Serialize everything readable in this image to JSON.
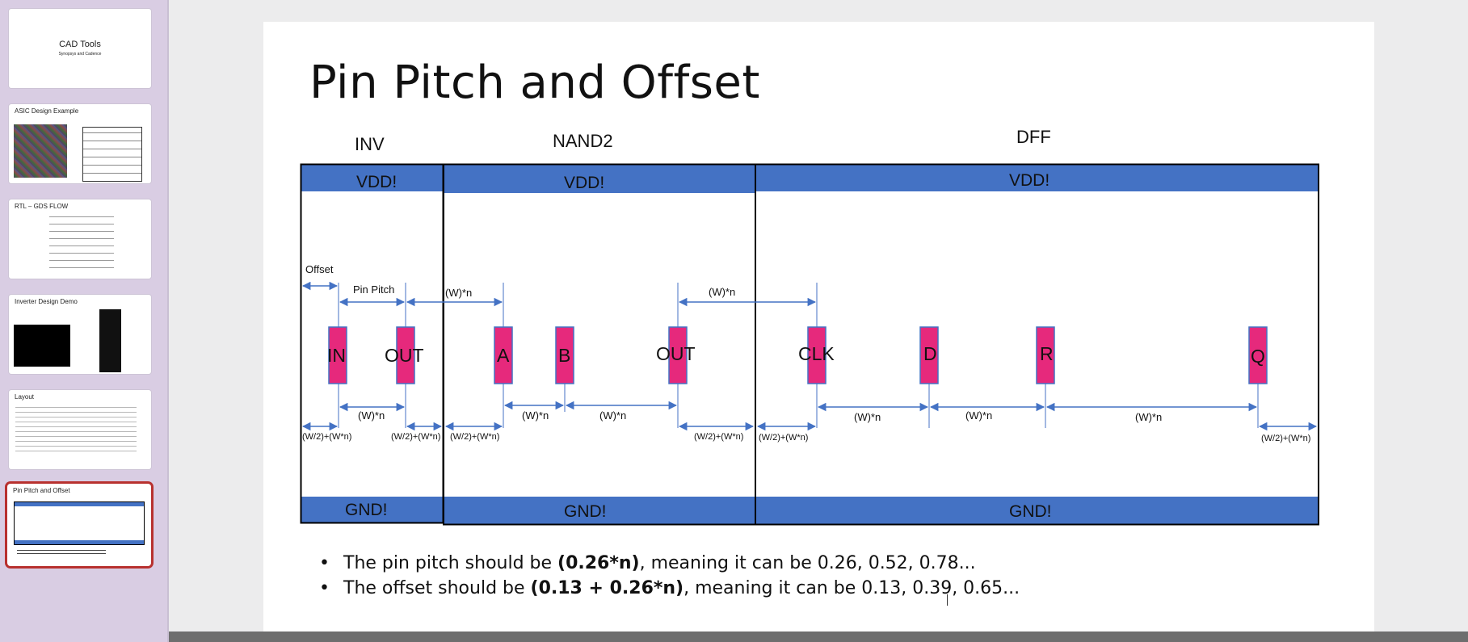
{
  "thumbnails": [
    {
      "title": "CAD Tools",
      "subtitle": "Synopsys and Cadence"
    },
    {
      "title": "ASIC Design Example"
    },
    {
      "title": "RTL – GDS FLOW"
    },
    {
      "title": "Inverter Design Demo"
    },
    {
      "title": "Layout"
    },
    {
      "title": "Pin Pitch and Offset"
    }
  ],
  "slide": {
    "title": "Pin Pitch and Offset",
    "cells": {
      "inv": "INV",
      "nand2": "NAND2",
      "dff": "DFF"
    },
    "vdd": "VDD!",
    "gnd": "GND!",
    "pins": {
      "inv_in": "IN",
      "inv_out": "OUT",
      "nand_a": "A",
      "nand_b": "B",
      "nand_out": "OUT",
      "dff_clk": "CLK",
      "dff_d": "D",
      "dff_r": "R",
      "dff_q": "Q"
    },
    "labels": {
      "offset": "Offset",
      "pin_pitch": "Pin Pitch",
      "wn": "(W)*n",
      "half_w": "(W/2)+(W*n)"
    },
    "bullets": [
      {
        "before": "The pin pitch should be ",
        "bold": "(0.26*n)",
        "after": ", meaning it can be 0.26, 0.52, 0.78..."
      },
      {
        "before": "The offset should be ",
        "bold": "(0.13 + 0.26*n)",
        "after": ", meaning it can be 0.13, 0.39, 0.65..."
      }
    ],
    "colors": {
      "rail": "#4472c4",
      "pin": "#e6297c",
      "arrow": "#4472c4"
    }
  }
}
